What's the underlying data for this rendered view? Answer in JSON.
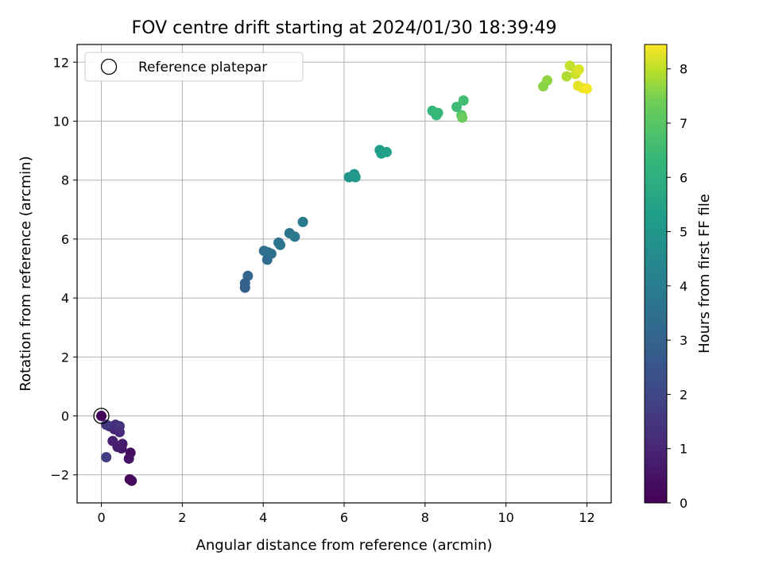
{
  "chart_data": {
    "type": "scatter",
    "title": "FOV centre drift starting at 2024/01/30 18:39:49",
    "xlabel": "Angular distance from reference (arcmin)",
    "ylabel": "Rotation from reference (arcmin)",
    "xlim": [
      -0.6,
      12.6
    ],
    "ylim": [
      -2.95,
      12.6
    ],
    "xticks": [
      0,
      2,
      4,
      6,
      8,
      10,
      12
    ],
    "yticks": [
      -2,
      0,
      2,
      4,
      6,
      8,
      10,
      12
    ],
    "grid": true,
    "legend": {
      "position": "top-left",
      "entries": [
        "Reference platepar"
      ]
    },
    "reference_point": {
      "x": 0,
      "y": 0,
      "label": "Reference platepar"
    },
    "colorbar": {
      "label": "Hours from first FF file",
      "range": [
        0,
        8.45
      ],
      "ticks": [
        0,
        1,
        2,
        3,
        4,
        5,
        6,
        7,
        8
      ],
      "colormap": "viridis"
    },
    "series": [
      {
        "points": [
          {
            "x": 0.0,
            "y": 0.0,
            "hours": 0.05
          },
          {
            "x": 0.7,
            "y": -2.15,
            "hours": 0.15
          },
          {
            "x": 0.75,
            "y": -2.2,
            "hours": 0.25
          },
          {
            "x": 0.72,
            "y": -1.25,
            "hours": 0.35
          },
          {
            "x": 0.68,
            "y": -1.45,
            "hours": 0.45
          },
          {
            "x": 0.5,
            "y": -1.1,
            "hours": 0.55
          },
          {
            "x": 0.52,
            "y": -0.95,
            "hours": 0.65
          },
          {
            "x": 0.4,
            "y": -1.05,
            "hours": 0.75
          },
          {
            "x": 0.28,
            "y": -0.85,
            "hours": 0.85
          },
          {
            "x": 0.32,
            "y": -0.45,
            "hours": 0.95
          },
          {
            "x": 0.45,
            "y": -0.55,
            "hours": 1.05
          },
          {
            "x": 0.2,
            "y": -0.35,
            "hours": 1.15
          },
          {
            "x": 0.35,
            "y": -0.3,
            "hours": 1.25
          },
          {
            "x": 0.45,
            "y": -0.35,
            "hours": 1.4
          },
          {
            "x": 0.12,
            "y": -0.3,
            "hours": 1.55
          },
          {
            "x": 0.12,
            "y": -1.4,
            "hours": 1.75
          },
          {
            "x": 3.55,
            "y": 4.35,
            "hours": 2.9
          },
          {
            "x": 3.55,
            "y": 4.5,
            "hours": 3.0
          },
          {
            "x": 3.62,
            "y": 4.75,
            "hours": 3.1
          },
          {
            "x": 4.1,
            "y": 5.3,
            "hours": 3.3
          },
          {
            "x": 4.02,
            "y": 5.6,
            "hours": 3.4
          },
          {
            "x": 4.2,
            "y": 5.5,
            "hours": 3.45
          },
          {
            "x": 4.12,
            "y": 5.55,
            "hours": 3.5
          },
          {
            "x": 4.42,
            "y": 5.8,
            "hours": 3.6
          },
          {
            "x": 4.38,
            "y": 5.88,
            "hours": 3.65
          },
          {
            "x": 4.65,
            "y": 6.2,
            "hours": 3.75
          },
          {
            "x": 4.78,
            "y": 6.08,
            "hours": 3.8
          },
          {
            "x": 4.98,
            "y": 6.58,
            "hours": 3.9
          },
          {
            "x": 6.12,
            "y": 8.1,
            "hours": 4.9
          },
          {
            "x": 6.25,
            "y": 8.2,
            "hours": 5.0
          },
          {
            "x": 6.28,
            "y": 8.1,
            "hours": 5.05
          },
          {
            "x": 6.88,
            "y": 9.02,
            "hours": 5.3
          },
          {
            "x": 6.92,
            "y": 8.9,
            "hours": 5.35
          },
          {
            "x": 7.05,
            "y": 8.95,
            "hours": 5.4
          },
          {
            "x": 8.18,
            "y": 10.35,
            "hours": 6.3
          },
          {
            "x": 8.28,
            "y": 10.2,
            "hours": 6.35
          },
          {
            "x": 8.32,
            "y": 10.28,
            "hours": 6.4
          },
          {
            "x": 8.78,
            "y": 10.48,
            "hours": 6.5
          },
          {
            "x": 8.95,
            "y": 10.7,
            "hours": 6.6
          },
          {
            "x": 8.9,
            "y": 10.2,
            "hours": 6.85
          },
          {
            "x": 8.92,
            "y": 10.12,
            "hours": 7.3
          },
          {
            "x": 10.92,
            "y": 11.18,
            "hours": 7.6
          },
          {
            "x": 11.02,
            "y": 11.38,
            "hours": 7.65
          },
          {
            "x": 11.5,
            "y": 11.52,
            "hours": 7.9
          },
          {
            "x": 11.58,
            "y": 11.88,
            "hours": 8.05
          },
          {
            "x": 11.72,
            "y": 11.6,
            "hours": 8.1
          },
          {
            "x": 11.8,
            "y": 11.75,
            "hours": 8.2
          },
          {
            "x": 11.78,
            "y": 11.2,
            "hours": 8.25
          },
          {
            "x": 11.9,
            "y": 11.12,
            "hours": 8.3
          },
          {
            "x": 12.0,
            "y": 11.1,
            "hours": 8.4
          }
        ]
      }
    ]
  }
}
